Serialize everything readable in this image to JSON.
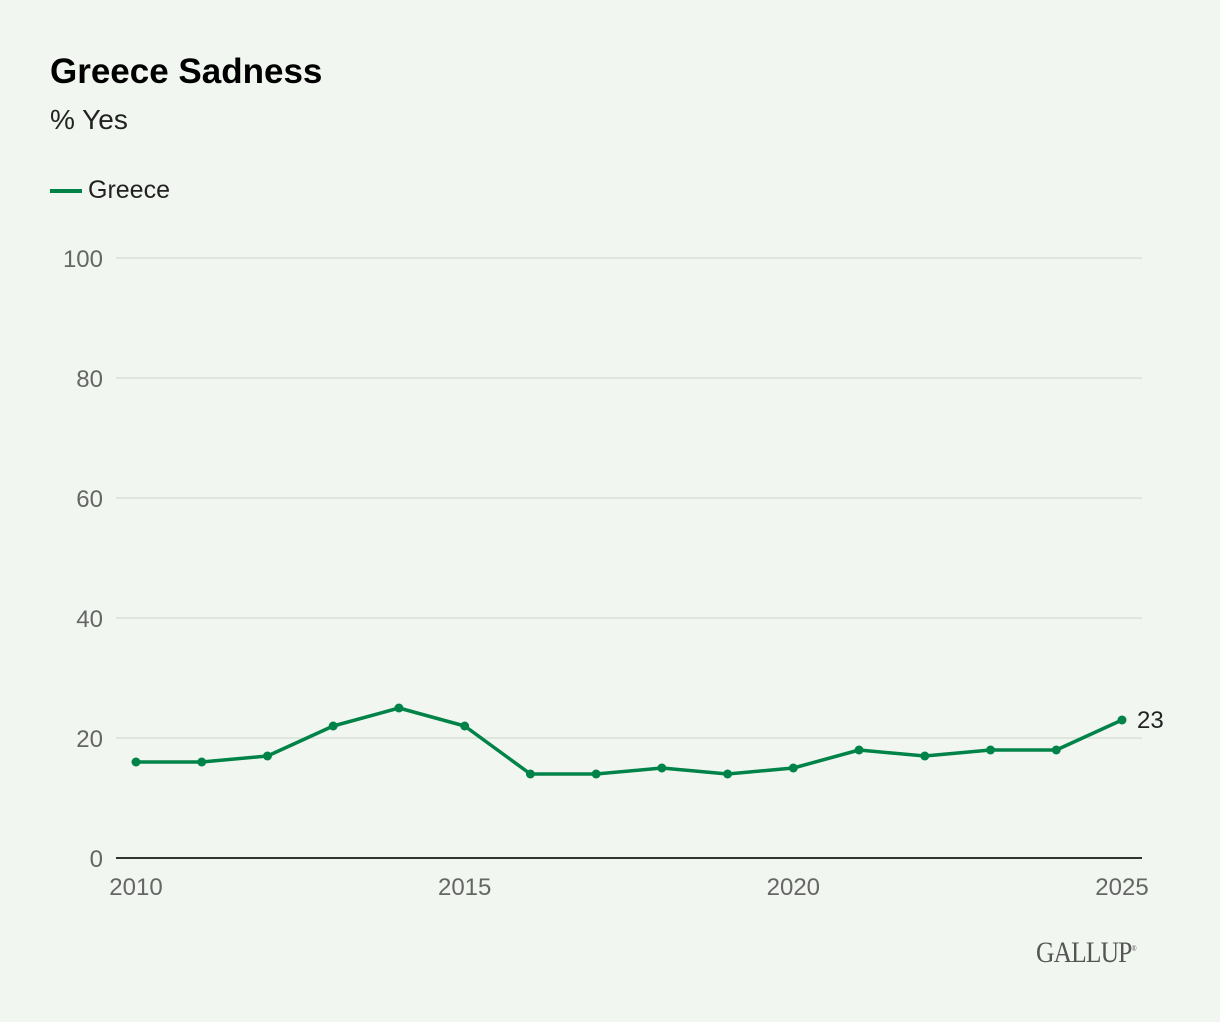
{
  "chart_data": {
    "type": "line",
    "title": "Greece Sadness",
    "subtitle": "% Yes",
    "xlabel": "",
    "ylabel": "",
    "x": [
      2010,
      2011,
      2012,
      2013,
      2014,
      2015,
      2016,
      2017,
      2018,
      2019,
      2020,
      2021,
      2022,
      2023,
      2024,
      2025
    ],
    "series": [
      {
        "name": "Greece",
        "color": "#008348",
        "values": [
          16,
          16,
          17,
          22,
          25,
          22,
          14,
          14,
          15,
          14,
          15,
          18,
          17,
          18,
          18,
          23
        ]
      }
    ],
    "ylim": [
      0,
      100
    ],
    "xlim": [
      2010,
      2025
    ],
    "yticks": [
      "0",
      "20",
      "40",
      "60",
      "80",
      "100"
    ],
    "xticks": [
      "2010",
      "2015",
      "2020",
      "2025"
    ],
    "end_label": "23",
    "grid": true,
    "legend_position": "top-left"
  },
  "branding": {
    "logo": "GALLUP",
    "mark": "®"
  }
}
